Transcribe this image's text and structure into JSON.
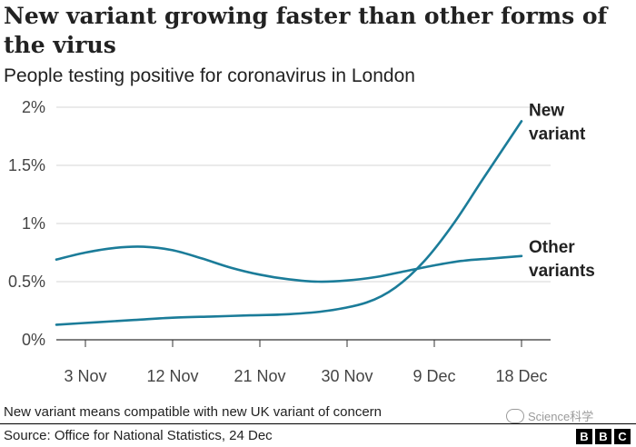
{
  "chart_data": {
    "type": "line",
    "title": "New variant growing faster than other forms of the virus",
    "subtitle": "People testing positive for coronavirus in London",
    "x_labels": [
      "3 Nov",
      "12 Nov",
      "21 Nov",
      "30 Nov",
      "9 Dec",
      "18 Dec"
    ],
    "x_label_days": [
      3,
      12,
      21,
      30,
      39,
      48
    ],
    "x_range": [
      0,
      51
    ],
    "y_ticks": [
      0,
      0.5,
      1,
      1.5,
      2
    ],
    "y_tick_labels": [
      "0%",
      "0.5%",
      "1%",
      "1.5%",
      "2%"
    ],
    "ylim": [
      0,
      2
    ],
    "grid": true,
    "series": [
      {
        "name_lines": [
          "New",
          "variant"
        ],
        "color": "#1b7c99",
        "x": [
          0,
          4,
          8,
          12,
          16,
          20,
          24,
          28,
          32,
          35,
          38,
          41,
          44,
          48
        ],
        "values": [
          0.13,
          0.15,
          0.17,
          0.19,
          0.2,
          0.21,
          0.22,
          0.25,
          0.32,
          0.45,
          0.68,
          1.0,
          1.38,
          1.88
        ]
      },
      {
        "name_lines": [
          "Other",
          "variants"
        ],
        "color": "#1b7c99",
        "x": [
          0,
          3,
          6,
          9,
          12,
          15,
          18,
          21,
          24,
          27,
          30,
          33,
          36,
          39,
          42,
          45,
          48
        ],
        "values": [
          0.69,
          0.75,
          0.79,
          0.8,
          0.77,
          0.7,
          0.62,
          0.56,
          0.52,
          0.5,
          0.51,
          0.54,
          0.59,
          0.64,
          0.68,
          0.7,
          0.72
        ]
      }
    ]
  },
  "footnote": "New variant means compatible with new UK variant of concern",
  "source": "Source: Office for National Statistics, 24 Dec",
  "watermark": "Science科学",
  "logo_letters": [
    "B",
    "B",
    "C"
  ]
}
